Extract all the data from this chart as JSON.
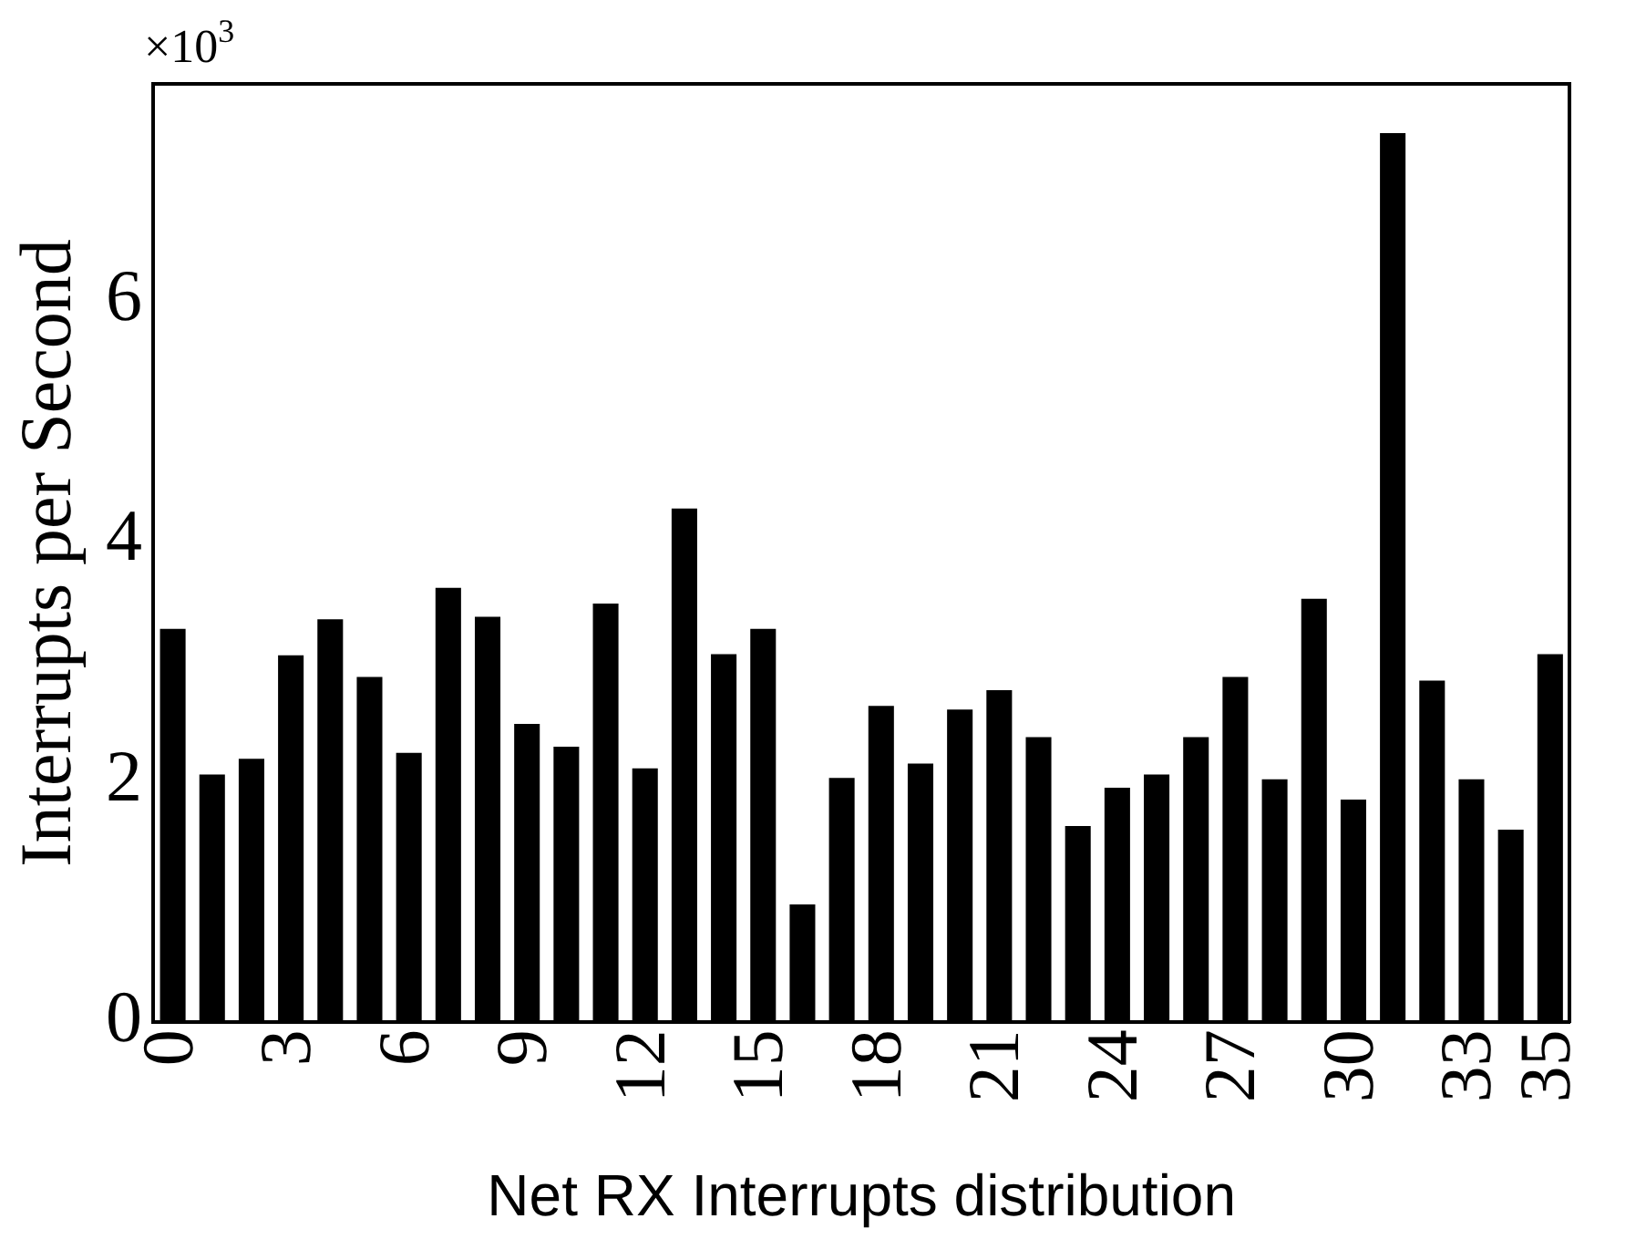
{
  "chart_data": {
    "type": "bar",
    "xlabel": "Net RX Interrupts distribution",
    "ylabel": "Interrupts per Second",
    "annotations": [
      "×10$^{3}$"
    ],
    "categories": [
      "0",
      null,
      null,
      "3",
      null,
      null,
      "6",
      null,
      null,
      "9",
      null,
      null,
      "12",
      null,
      null,
      "15",
      null,
      null,
      "18",
      null,
      null,
      "21",
      null,
      null,
      "24",
      null,
      null,
      "27",
      null,
      null,
      "30",
      null,
      null,
      "33",
      null,
      "35"
    ],
    "values": [
      3.27,
      2.06,
      2.19,
      3.05,
      3.35,
      2.87,
      2.24,
      3.61,
      3.37,
      2.48,
      2.29,
      3.48,
      2.11,
      4.27,
      3.06,
      3.27,
      0.98,
      2.03,
      2.63,
      2.15,
      2.6,
      2.76,
      2.37,
      1.63,
      1.95,
      2.06,
      2.37,
      2.87,
      2.02,
      3.52,
      1.85,
      7.39,
      2.84,
      2.02,
      1.6,
      3.06
    ],
    "color": "#000000",
    "ylim": [
      0,
      7.8
    ],
    "yticks": [
      0,
      2,
      4,
      6
    ],
    "grid": false,
    "legend": false
  }
}
